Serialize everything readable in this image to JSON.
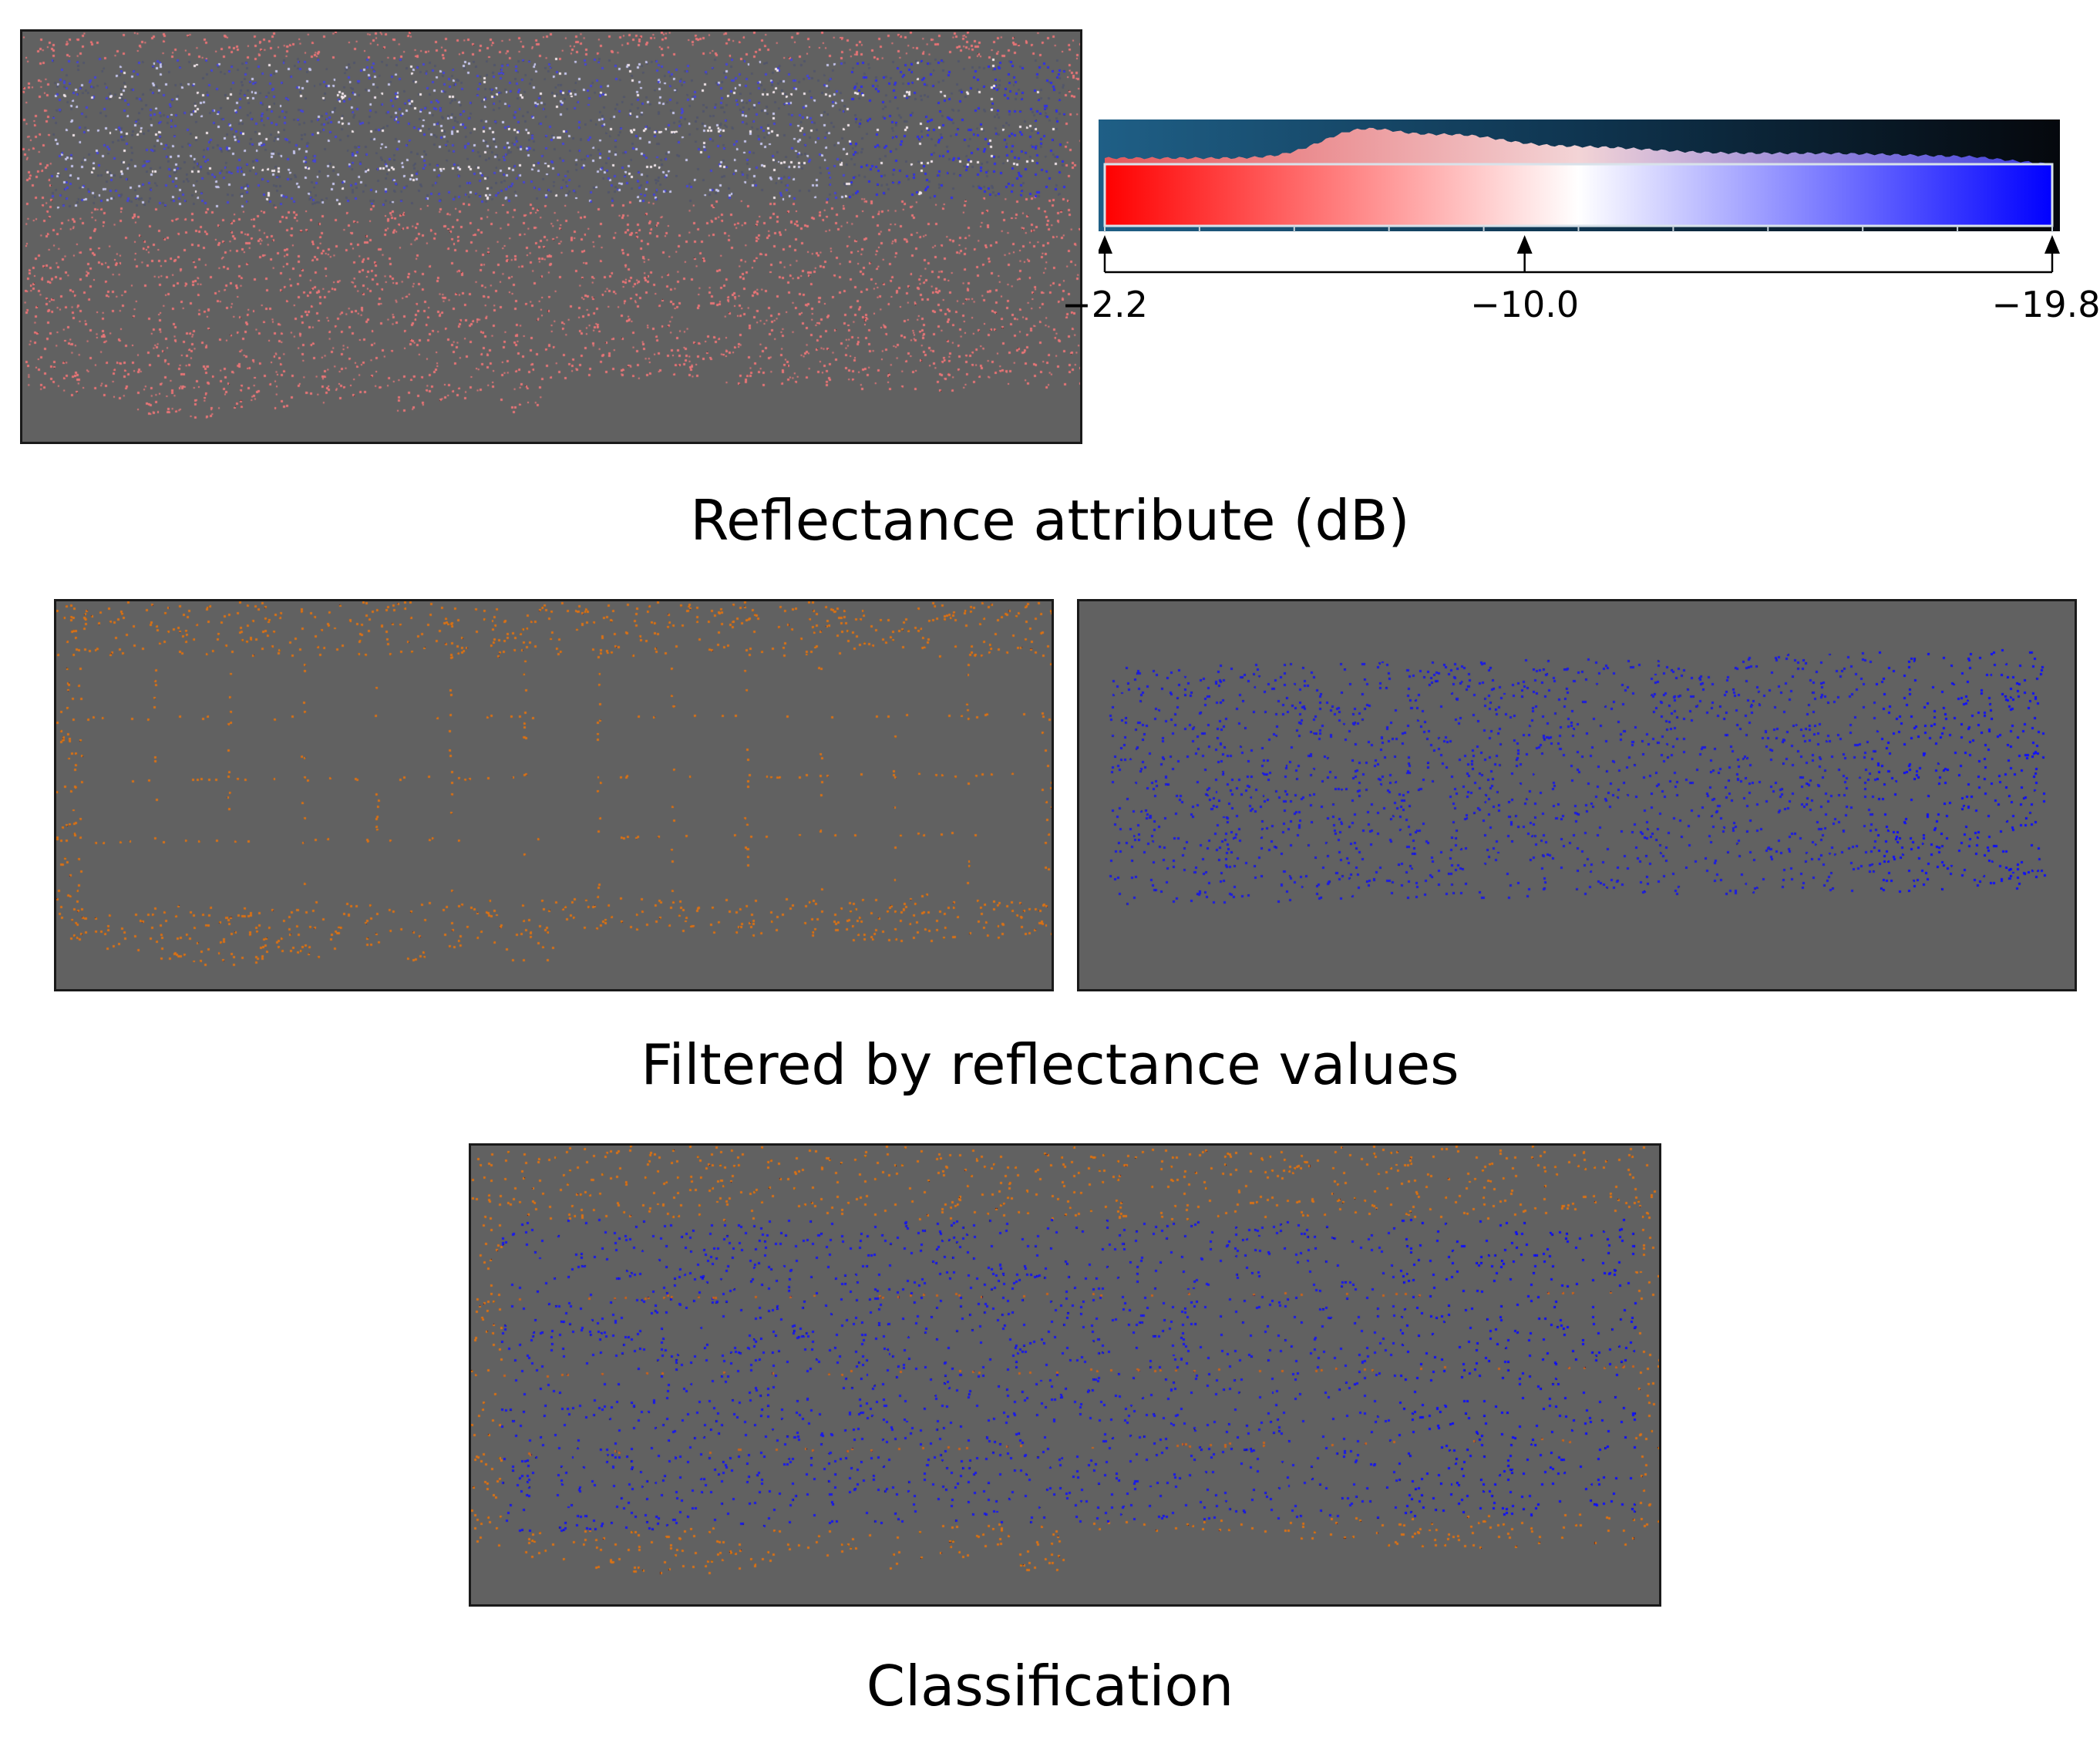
{
  "captions": {
    "reflectance": "Reflectance attribute (dB)",
    "filtered": "Filtered by reflectance values",
    "classification": "Classification"
  },
  "colorbar": {
    "tick_labels": [
      "−2.2",
      "−10.0",
      "−19.8"
    ],
    "tick_values": [
      -2.2,
      -10.0,
      -19.8
    ],
    "range": [
      -19.8,
      -2.2
    ],
    "gradient": [
      "#ff0000",
      "#ffffff",
      "#0000ff"
    ]
  },
  "colors": {
    "background_panel": "#616161",
    "high_reflectance": "#e8787a",
    "low_reflectance": "#2020e8",
    "class_ground": "#d97418",
    "class_panel": "#1a1aee"
  },
  "panels": {
    "reflectance": "point-cloud-reflectance",
    "filtered_high": "point-cloud-filtered-high",
    "filtered_low": "point-cloud-filtered-low",
    "classification": "point-cloud-classification"
  }
}
